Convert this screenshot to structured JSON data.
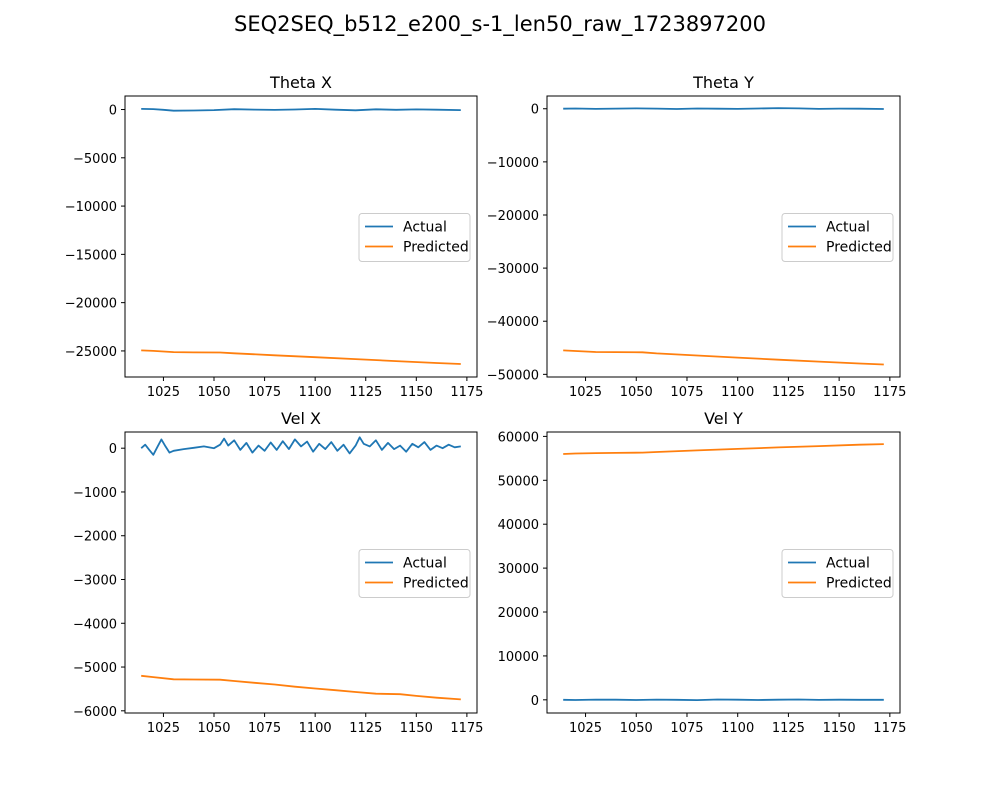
{
  "figure": {
    "title": "SEQ2SEQ_b512_e200_s-1_len50_raw_1723897200"
  },
  "colors": {
    "actual": "#1f77b4",
    "predicted": "#ff7f0e"
  },
  "chart_data": [
    {
      "type": "line",
      "title": "Theta X",
      "xlabel": "",
      "ylabel": "",
      "xlim": [
        1006,
        1180
      ],
      "ylim": [
        -27700,
        1400
      ],
      "xticks": [
        1025,
        1050,
        1075,
        1100,
        1125,
        1150,
        1175
      ],
      "yticks": [
        0,
        -5000,
        -10000,
        -15000,
        -20000,
        -25000
      ],
      "legend": {
        "placement": "center-right",
        "entries": [
          "Actual",
          "Predicted"
        ]
      },
      "grid": false,
      "series": [
        {
          "name": "Actual",
          "color": "#1f77b4",
          "x": [
            1014,
            1020,
            1025,
            1030,
            1040,
            1050,
            1060,
            1070,
            1080,
            1090,
            1100,
            1110,
            1120,
            1130,
            1140,
            1150,
            1160,
            1172
          ],
          "y": [
            60,
            40,
            -30,
            -120,
            -100,
            -60,
            30,
            -10,
            -40,
            0,
            60,
            -20,
            -80,
            20,
            -30,
            10,
            -20,
            -60
          ]
        },
        {
          "name": "Predicted",
          "color": "#ff7f0e",
          "x": [
            1014,
            1020,
            1030,
            1040,
            1053,
            1060,
            1080,
            1100,
            1120,
            1140,
            1160,
            1172
          ],
          "y": [
            -24950,
            -25000,
            -25120,
            -25150,
            -25160,
            -25250,
            -25450,
            -25650,
            -25850,
            -26050,
            -26250,
            -26350
          ]
        }
      ]
    },
    {
      "type": "line",
      "title": "Theta Y",
      "xlabel": "",
      "ylabel": "",
      "xlim": [
        1006,
        1180
      ],
      "ylim": [
        -50500,
        2400
      ],
      "xticks": [
        1025,
        1050,
        1075,
        1100,
        1125,
        1150,
        1175
      ],
      "yticks": [
        0,
        -10000,
        -20000,
        -30000,
        -40000,
        -50000
      ],
      "legend": {
        "placement": "center-right",
        "entries": [
          "Actual",
          "Predicted"
        ]
      },
      "grid": false,
      "series": [
        {
          "name": "Actual",
          "color": "#1f77b4",
          "x": [
            1014,
            1020,
            1030,
            1040,
            1050,
            1060,
            1070,
            1080,
            1090,
            1100,
            1110,
            1120,
            1130,
            1140,
            1150,
            1160,
            1172
          ],
          "y": [
            0,
            40,
            -20,
            30,
            60,
            20,
            -50,
            40,
            10,
            -30,
            50,
            120,
            60,
            -20,
            30,
            0,
            -40
          ]
        },
        {
          "name": "Predicted",
          "color": "#ff7f0e",
          "x": [
            1014,
            1020,
            1030,
            1040,
            1053,
            1060,
            1080,
            1100,
            1120,
            1140,
            1160,
            1172
          ],
          "y": [
            -45500,
            -45600,
            -45800,
            -45820,
            -45850,
            -46050,
            -46450,
            -46850,
            -47250,
            -47600,
            -47950,
            -48150
          ]
        }
      ]
    },
    {
      "type": "line",
      "title": "Vel X",
      "xlabel": "",
      "ylabel": "",
      "xlim": [
        1006,
        1180
      ],
      "ylim": [
        -6050,
        370
      ],
      "xticks": [
        1025,
        1050,
        1075,
        1100,
        1125,
        1150,
        1175
      ],
      "yticks": [
        0,
        -1000,
        -2000,
        -3000,
        -4000,
        -5000,
        -6000
      ],
      "legend": {
        "placement": "center-right",
        "entries": [
          "Actual",
          "Predicted"
        ]
      },
      "grid": false,
      "series": [
        {
          "name": "Actual",
          "color": "#1f77b4",
          "x": [
            1014,
            1016,
            1018,
            1020,
            1022,
            1024,
            1026,
            1028,
            1030,
            1035,
            1040,
            1045,
            1050,
            1053,
            1055,
            1057,
            1060,
            1063,
            1066,
            1069,
            1072,
            1075,
            1078,
            1081,
            1084,
            1087,
            1090,
            1093,
            1096,
            1099,
            1102,
            1105,
            1108,
            1111,
            1114,
            1117,
            1120,
            1122,
            1124,
            1127,
            1130,
            1133,
            1136,
            1139,
            1142,
            1145,
            1148,
            1151,
            1154,
            1157,
            1160,
            1163,
            1166,
            1169,
            1172
          ],
          "y": [
            0,
            80,
            -40,
            -150,
            30,
            200,
            40,
            -100,
            -60,
            -20,
            10,
            40,
            0,
            80,
            220,
            60,
            180,
            -40,
            120,
            -100,
            60,
            -60,
            130,
            -40,
            160,
            -20,
            200,
            40,
            150,
            -80,
            100,
            -20,
            140,
            -60,
            80,
            -120,
            60,
            250,
            100,
            40,
            180,
            -40,
            120,
            -20,
            60,
            -80,
            100,
            20,
            140,
            -40,
            60,
            0,
            80,
            20,
            40
          ]
        },
        {
          "name": "Predicted",
          "color": "#ff7f0e",
          "x": [
            1014,
            1020,
            1030,
            1040,
            1053,
            1060,
            1070,
            1080,
            1090,
            1100,
            1110,
            1120,
            1130,
            1142,
            1150,
            1160,
            1172
          ],
          "y": [
            -5200,
            -5230,
            -5280,
            -5285,
            -5290,
            -5320,
            -5360,
            -5400,
            -5450,
            -5490,
            -5530,
            -5570,
            -5610,
            -5620,
            -5660,
            -5700,
            -5740
          ]
        }
      ]
    },
    {
      "type": "line",
      "title": "Vel Y",
      "xlabel": "",
      "ylabel": "",
      "xlim": [
        1006,
        1180
      ],
      "ylim": [
        -3000,
        61000
      ],
      "xticks": [
        1025,
        1050,
        1075,
        1100,
        1125,
        1150,
        1175
      ],
      "yticks": [
        0,
        10000,
        20000,
        30000,
        40000,
        50000,
        60000
      ],
      "legend": {
        "placement": "center-right",
        "entries": [
          "Actual",
          "Predicted"
        ]
      },
      "grid": false,
      "series": [
        {
          "name": "Actual",
          "color": "#1f77b4",
          "x": [
            1014,
            1020,
            1030,
            1040,
            1050,
            1060,
            1070,
            1080,
            1090,
            1100,
            1110,
            1120,
            1130,
            1140,
            1150,
            1160,
            1172
          ],
          "y": [
            0,
            -50,
            60,
            20,
            -40,
            50,
            0,
            -60,
            80,
            30,
            -50,
            40,
            70,
            -20,
            30,
            0,
            10
          ]
        },
        {
          "name": "Predicted",
          "color": "#ff7f0e",
          "x": [
            1014,
            1020,
            1030,
            1040,
            1053,
            1060,
            1080,
            1100,
            1120,
            1140,
            1160,
            1172
          ],
          "y": [
            56000,
            56100,
            56200,
            56250,
            56300,
            56450,
            56800,
            57150,
            57500,
            57800,
            58100,
            58250
          ]
        }
      ]
    }
  ]
}
